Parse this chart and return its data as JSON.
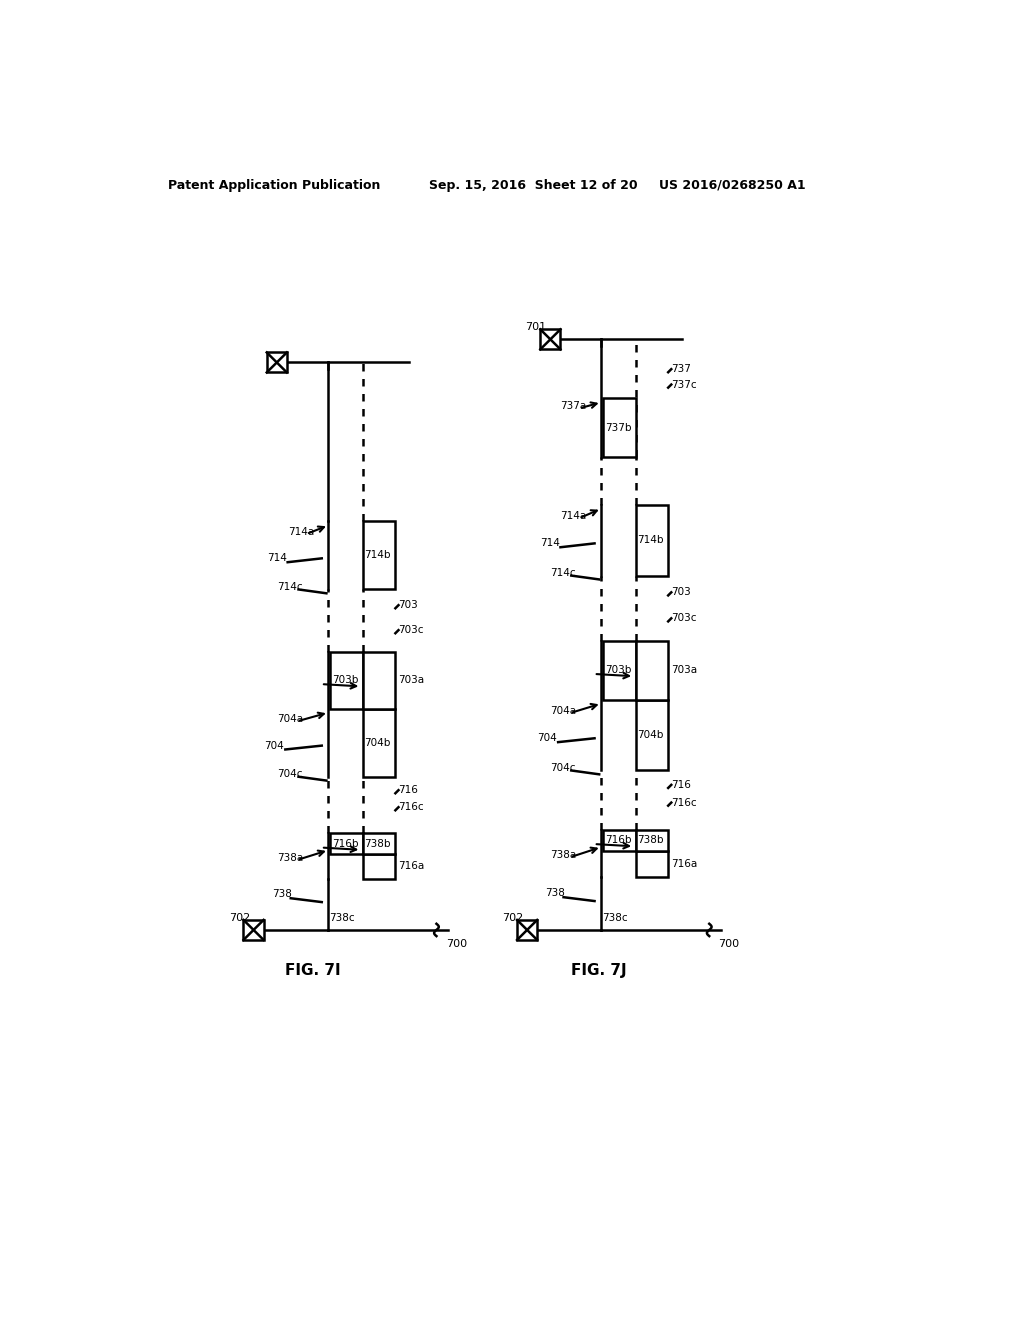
{
  "background_color": "#ffffff",
  "header_text": "Patent Application Publication",
  "header_date": "Sep. 15, 2016  Sheet 12 of 20",
  "header_patent": "US 2016/0268250 A1",
  "fig7i_label": "FIG. 7I",
  "fig7j_label": "FIG. 7J",
  "line_color": "#000000",
  "text_color": "#000000",
  "font_size_header": 9,
  "font_size_label": 7.5,
  "font_size_fig": 11
}
